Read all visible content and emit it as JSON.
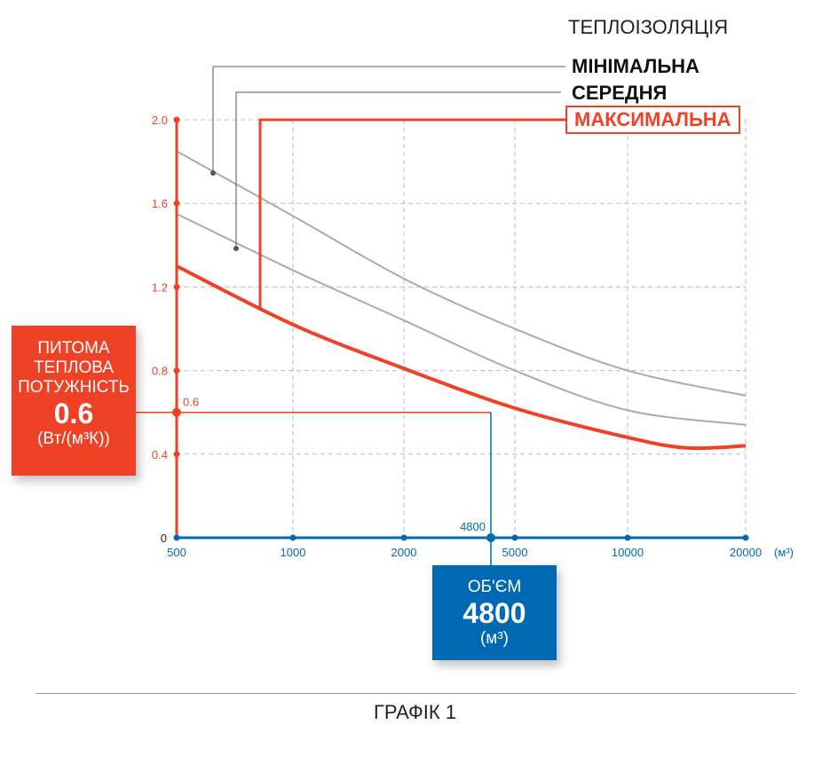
{
  "chart_data": {
    "type": "line",
    "title": "ТЕПЛОІЗОЛЯЦІЯ",
    "caption": "ГРАФІК 1",
    "x_ticks": [
      500,
      1000,
      2000,
      5000,
      10000,
      20000
    ],
    "x_tick_labels": [
      "500",
      "1000",
      "2000",
      "5000",
      "10000",
      "20000"
    ],
    "x_unit": "(м³)",
    "y_ticks": [
      0,
      0.4,
      0.8,
      1.2,
      1.6,
      2.0
    ],
    "y_tick_labels": [
      "0",
      "0.4",
      "0.8",
      "1.2",
      "1.6",
      "2.0"
    ],
    "ylim": [
      0,
      2.0
    ],
    "grid": true,
    "series": [
      {
        "name": "МІНІМАЛЬНА",
        "color": "#aaaaaa",
        "x": [
          500,
          1000,
          2000,
          5000,
          10000,
          20000
        ],
        "values": [
          1.85,
          1.54,
          1.24,
          1.0,
          0.8,
          0.68
        ]
      },
      {
        "name": "СЕРЕДНЯ",
        "color": "#aaaaaa",
        "x": [
          500,
          1000,
          2000,
          5000,
          10000,
          20000
        ],
        "values": [
          1.55,
          1.28,
          1.04,
          0.8,
          0.61,
          0.54
        ]
      },
      {
        "name": "МАКСИМАЛЬНА",
        "color": "#ee4126",
        "x": [
          500,
          1000,
          2000,
          5000,
          10000,
          15000,
          20000
        ],
        "values": [
          1.3,
          1.02,
          0.81,
          0.62,
          0.48,
          0.43,
          0.44
        ]
      }
    ],
    "annotation": {
      "x": 4800,
      "y": 0.6,
      "x_label": "4800",
      "y_label": "0.6"
    },
    "y_box": {
      "lines": [
        "ПИТОМА",
        "ТЕПЛОВА",
        "ПОТУЖНІСТЬ"
      ],
      "value": "0.6",
      "unit": "(Вт/(м³К))"
    },
    "x_box": {
      "label": "ОБ'ЄМ",
      "value": "4800",
      "unit": "(м³)"
    },
    "colors": {
      "y_axis": "#ee4126",
      "x_axis": "#0069b4",
      "grid": "#bbbbbb"
    }
  }
}
